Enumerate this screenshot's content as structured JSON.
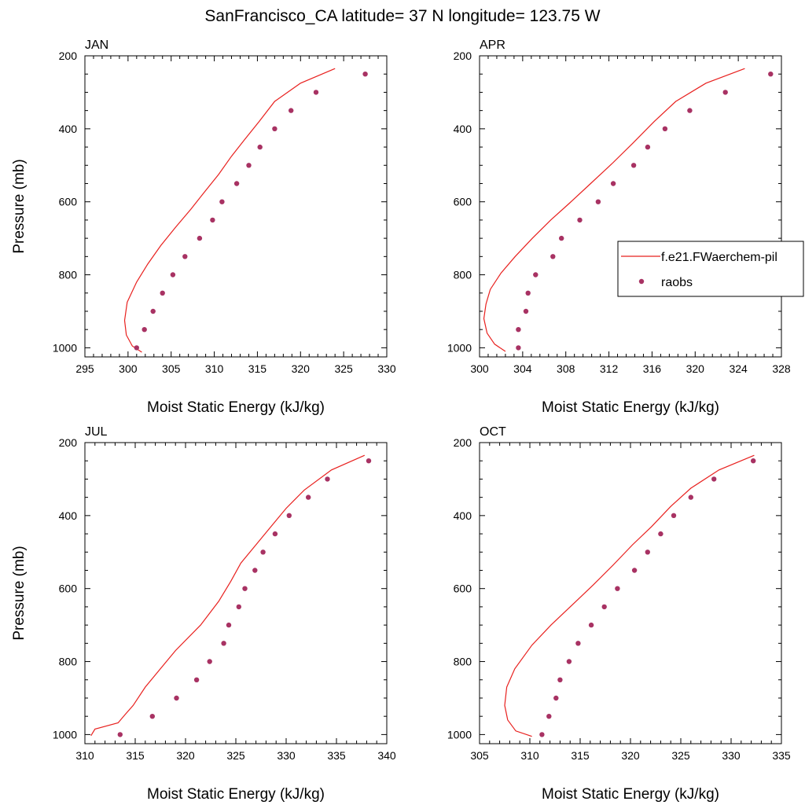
{
  "figure": {
    "title": "SanFrancisco_CA  latitude= 37 N longitude= 123.75 W"
  },
  "colors": {
    "model": "#e8201e",
    "obs": "#a83263",
    "axis": "#000000"
  },
  "legend": {
    "placement": "right, beside APR panel",
    "entries": [
      {
        "label": "f.e21.FWaerchem-pil",
        "kind": "line"
      },
      {
        "label": "raobs",
        "kind": "marker"
      }
    ]
  },
  "chart_data": [
    {
      "type": "line",
      "panel_label": "JAN",
      "xlabel": "Moist Static Energy (kJ/kg)",
      "ylabel": "Pressure (mb)",
      "xlim": [
        295,
        330
      ],
      "xticks": [
        295,
        300,
        305,
        310,
        315,
        320,
        325,
        330
      ],
      "ylim": [
        200,
        1025
      ],
      "yticks": [
        200,
        400,
        600,
        800,
        1000
      ],
      "y_reversed": true,
      "series": [
        {
          "name": "f.e21.FWaerchem-pil",
          "style": "line",
          "points": [
            [
              324.0,
              235
            ],
            [
              320.0,
              275
            ],
            [
              317.0,
              325
            ],
            [
              315.2,
              380
            ],
            [
              313.5,
              430
            ],
            [
              312.0,
              475
            ],
            [
              310.5,
              525
            ],
            [
              308.8,
              575
            ],
            [
              307.3,
              620
            ],
            [
              305.5,
              670
            ],
            [
              303.8,
              720
            ],
            [
              302.3,
              770
            ],
            [
              301.0,
              820
            ],
            [
              299.9,
              875
            ],
            [
              299.6,
              925
            ],
            [
              299.8,
              965
            ],
            [
              300.5,
              995
            ],
            [
              301.6,
              1012
            ]
          ]
        },
        {
          "name": "raobs",
          "style": "scatter",
          "points": [
            [
              327.5,
              250
            ],
            [
              321.8,
              300
            ],
            [
              318.9,
              350
            ],
            [
              317.0,
              400
            ],
            [
              315.3,
              450
            ],
            [
              314.0,
              500
            ],
            [
              312.6,
              550
            ],
            [
              310.9,
              600
            ],
            [
              309.8,
              650
            ],
            [
              308.3,
              700
            ],
            [
              306.6,
              750
            ],
            [
              305.2,
              800
            ],
            [
              304.0,
              850
            ],
            [
              302.9,
              900
            ],
            [
              301.9,
              950
            ],
            [
              301.0,
              1000
            ]
          ]
        }
      ]
    },
    {
      "type": "line",
      "panel_label": "APR",
      "xlabel": "Moist Static Energy (kJ/kg)",
      "ylabel": "",
      "xlim": [
        300,
        328
      ],
      "xticks": [
        300,
        304,
        308,
        312,
        316,
        320,
        324,
        328
      ],
      "ylim": [
        200,
        1025
      ],
      "yticks": [
        200,
        400,
        600,
        800,
        1000
      ],
      "y_reversed": true,
      "series": [
        {
          "name": "f.e21.FWaerchem-pil",
          "style": "line",
          "points": [
            [
              324.6,
              235
            ],
            [
              321.0,
              275
            ],
            [
              318.2,
              325
            ],
            [
              316.2,
              380
            ],
            [
              314.2,
              440
            ],
            [
              312.3,
              495
            ],
            [
              310.3,
              550
            ],
            [
              308.3,
              605
            ],
            [
              306.6,
              650
            ],
            [
              304.9,
              700
            ],
            [
              303.3,
              750
            ],
            [
              302.0,
              795
            ],
            [
              301.0,
              840
            ],
            [
              300.6,
              880
            ],
            [
              300.4,
              920
            ],
            [
              300.7,
              960
            ],
            [
              301.4,
              990
            ],
            [
              302.4,
              1010
            ]
          ]
        },
        {
          "name": "raobs",
          "style": "scatter",
          "points": [
            [
              327.0,
              250
            ],
            [
              322.8,
              300
            ],
            [
              319.5,
              350
            ],
            [
              317.2,
              400
            ],
            [
              315.6,
              450
            ],
            [
              314.3,
              500
            ],
            [
              312.4,
              550
            ],
            [
              311.0,
              600
            ],
            [
              309.3,
              650
            ],
            [
              307.6,
              700
            ],
            [
              306.8,
              750
            ],
            [
              305.2,
              800
            ],
            [
              304.5,
              850
            ],
            [
              304.3,
              900
            ],
            [
              303.6,
              950
            ],
            [
              303.6,
              1000
            ]
          ]
        }
      ]
    },
    {
      "type": "line",
      "panel_label": "JUL",
      "xlabel": "Moist Static Energy (kJ/kg)",
      "ylabel": "Pressure (mb)",
      "xlim": [
        310,
        340
      ],
      "xticks": [
        310,
        315,
        320,
        325,
        330,
        335,
        340
      ],
      "ylim": [
        200,
        1025
      ],
      "yticks": [
        200,
        400,
        600,
        800,
        1000
      ],
      "y_reversed": true,
      "series": [
        {
          "name": "f.e21.FWaerchem-pil",
          "style": "line",
          "points": [
            [
              337.8,
              235
            ],
            [
              334.5,
              275
            ],
            [
              331.8,
              330
            ],
            [
              330.0,
              380
            ],
            [
              328.5,
              430
            ],
            [
              327.0,
              480
            ],
            [
              325.5,
              530
            ],
            [
              324.5,
              580
            ],
            [
              323.3,
              635
            ],
            [
              321.5,
              700
            ],
            [
              319.0,
              770
            ],
            [
              317.5,
              820
            ],
            [
              316.0,
              870
            ],
            [
              314.8,
              920
            ],
            [
              314.0,
              945
            ],
            [
              313.3,
              968
            ],
            [
              311.0,
              985
            ],
            [
              310.6,
              1003
            ]
          ]
        },
        {
          "name": "raobs",
          "style": "scatter",
          "points": [
            [
              338.2,
              250
            ],
            [
              334.1,
              300
            ],
            [
              332.2,
              350
            ],
            [
              330.3,
              400
            ],
            [
              328.9,
              450
            ],
            [
              327.7,
              500
            ],
            [
              326.9,
              550
            ],
            [
              325.9,
              600
            ],
            [
              325.3,
              650
            ],
            [
              324.3,
              700
            ],
            [
              323.8,
              750
            ],
            [
              322.4,
              800
            ],
            [
              321.1,
              850
            ],
            [
              319.1,
              900
            ],
            [
              316.7,
              950
            ],
            [
              313.5,
              1000
            ]
          ]
        }
      ]
    },
    {
      "type": "line",
      "panel_label": "OCT",
      "xlabel": "Moist Static Energy (kJ/kg)",
      "ylabel": "",
      "xlim": [
        305,
        335
      ],
      "xticks": [
        305,
        310,
        315,
        320,
        325,
        330,
        335
      ],
      "ylim": [
        200,
        1025
      ],
      "yticks": [
        200,
        400,
        600,
        800,
        1000
      ],
      "y_reversed": true,
      "series": [
        {
          "name": "f.e21.FWaerchem-pil",
          "style": "line",
          "points": [
            [
              332.3,
              235
            ],
            [
              328.8,
              275
            ],
            [
              326.0,
              325
            ],
            [
              324.0,
              375
            ],
            [
              322.1,
              430
            ],
            [
              320.2,
              480
            ],
            [
              318.3,
              535
            ],
            [
              316.3,
              590
            ],
            [
              314.2,
              645
            ],
            [
              312.1,
              700
            ],
            [
              310.2,
              755
            ],
            [
              308.5,
              820
            ],
            [
              307.7,
              870
            ],
            [
              307.5,
              920
            ],
            [
              307.8,
              960
            ],
            [
              308.6,
              990
            ],
            [
              310.2,
              1005
            ]
          ]
        },
        {
          "name": "raobs",
          "style": "scatter",
          "points": [
            [
              332.2,
              250
            ],
            [
              328.3,
              300
            ],
            [
              326.0,
              350
            ],
            [
              324.3,
              400
            ],
            [
              323.0,
              450
            ],
            [
              321.7,
              500
            ],
            [
              320.4,
              550
            ],
            [
              318.7,
              600
            ],
            [
              317.4,
              650
            ],
            [
              316.1,
              700
            ],
            [
              314.8,
              750
            ],
            [
              313.9,
              800
            ],
            [
              313.0,
              850
            ],
            [
              312.6,
              900
            ],
            [
              311.9,
              950
            ],
            [
              311.2,
              1000
            ]
          ]
        }
      ]
    }
  ]
}
